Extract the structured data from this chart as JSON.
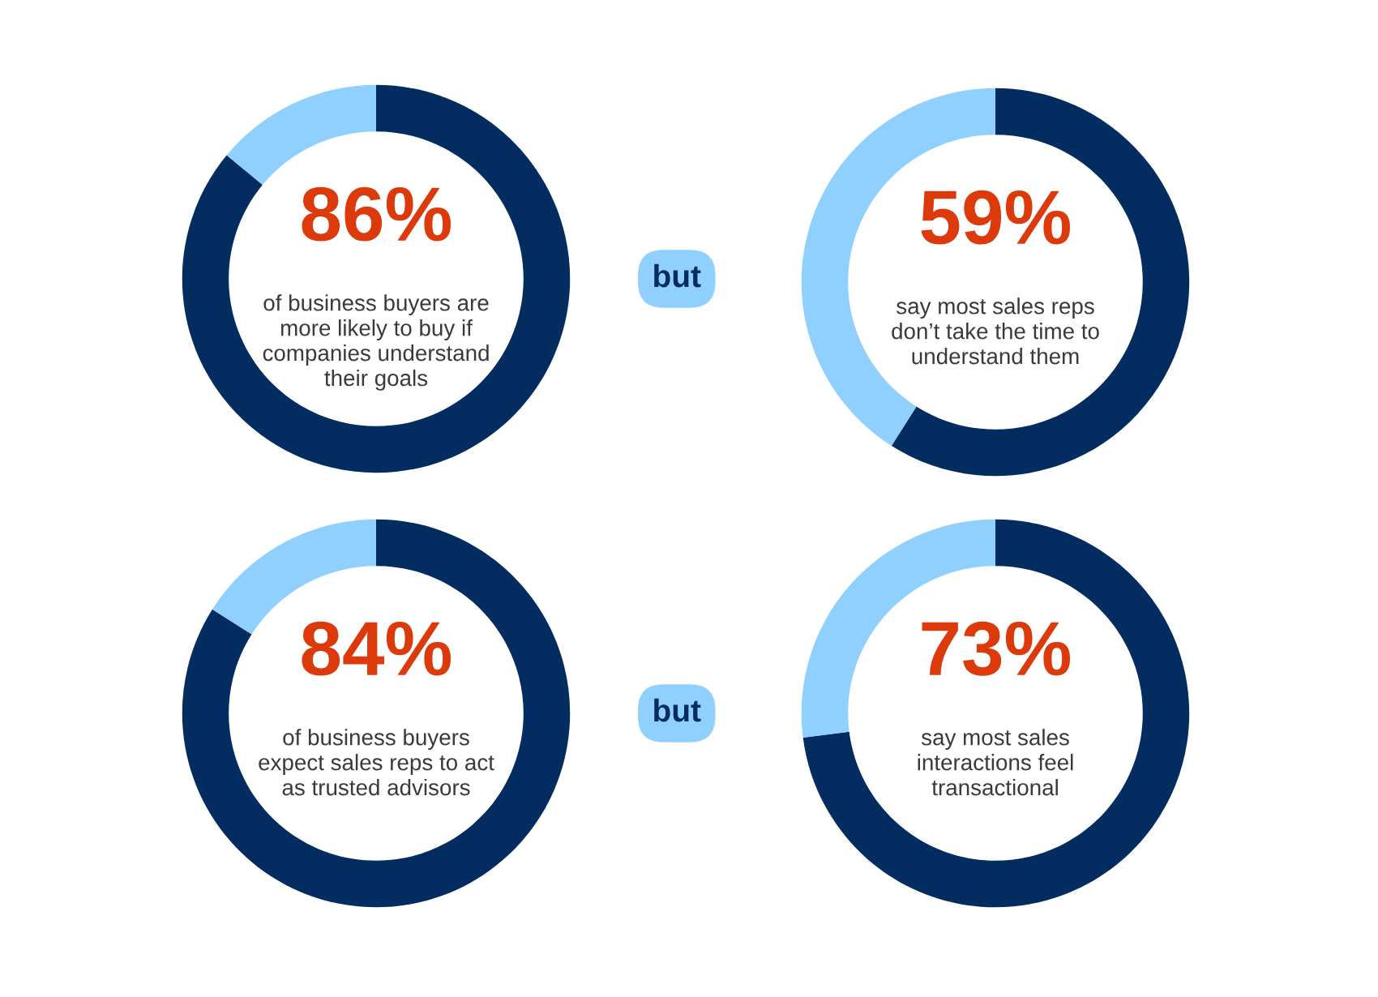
{
  "chart_data": [
    {
      "type": "donut",
      "categories": [
        null,
        null
      ],
      "values": [
        86,
        14
      ],
      "colors": [
        "#032d60",
        "#90d0fe"
      ],
      "value_labels": [
        "86%",
        null
      ],
      "annotations": [
        "of business buyers are more likely to buy if companies understand their goals",
        "but"
      ]
    },
    {
      "type": "donut",
      "categories": [
        null,
        null
      ],
      "values": [
        59,
        41
      ],
      "colors": [
        "#032d60",
        "#90d0fe"
      ],
      "value_labels": [
        "59%",
        null
      ],
      "annotations": [
        "say most sales reps don’t take the time to understand them"
      ]
    },
    {
      "type": "donut",
      "categories": [
        null,
        null
      ],
      "values": [
        84,
        16
      ],
      "colors": [
        "#032d60",
        "#90d0fe"
      ],
      "value_labels": [
        "84%",
        null
      ],
      "annotations": [
        "of business buyers expect sales reps to act as trusted advisors",
        "but"
      ]
    },
    {
      "type": "donut",
      "categories": [
        null,
        null
      ],
      "values": [
        73,
        27
      ],
      "colors": [
        "#032d60",
        "#90d0fe"
      ],
      "value_labels": [
        "73%",
        null
      ],
      "annotations": [
        "say most sales interactions feel transactional"
      ]
    }
  ]
}
